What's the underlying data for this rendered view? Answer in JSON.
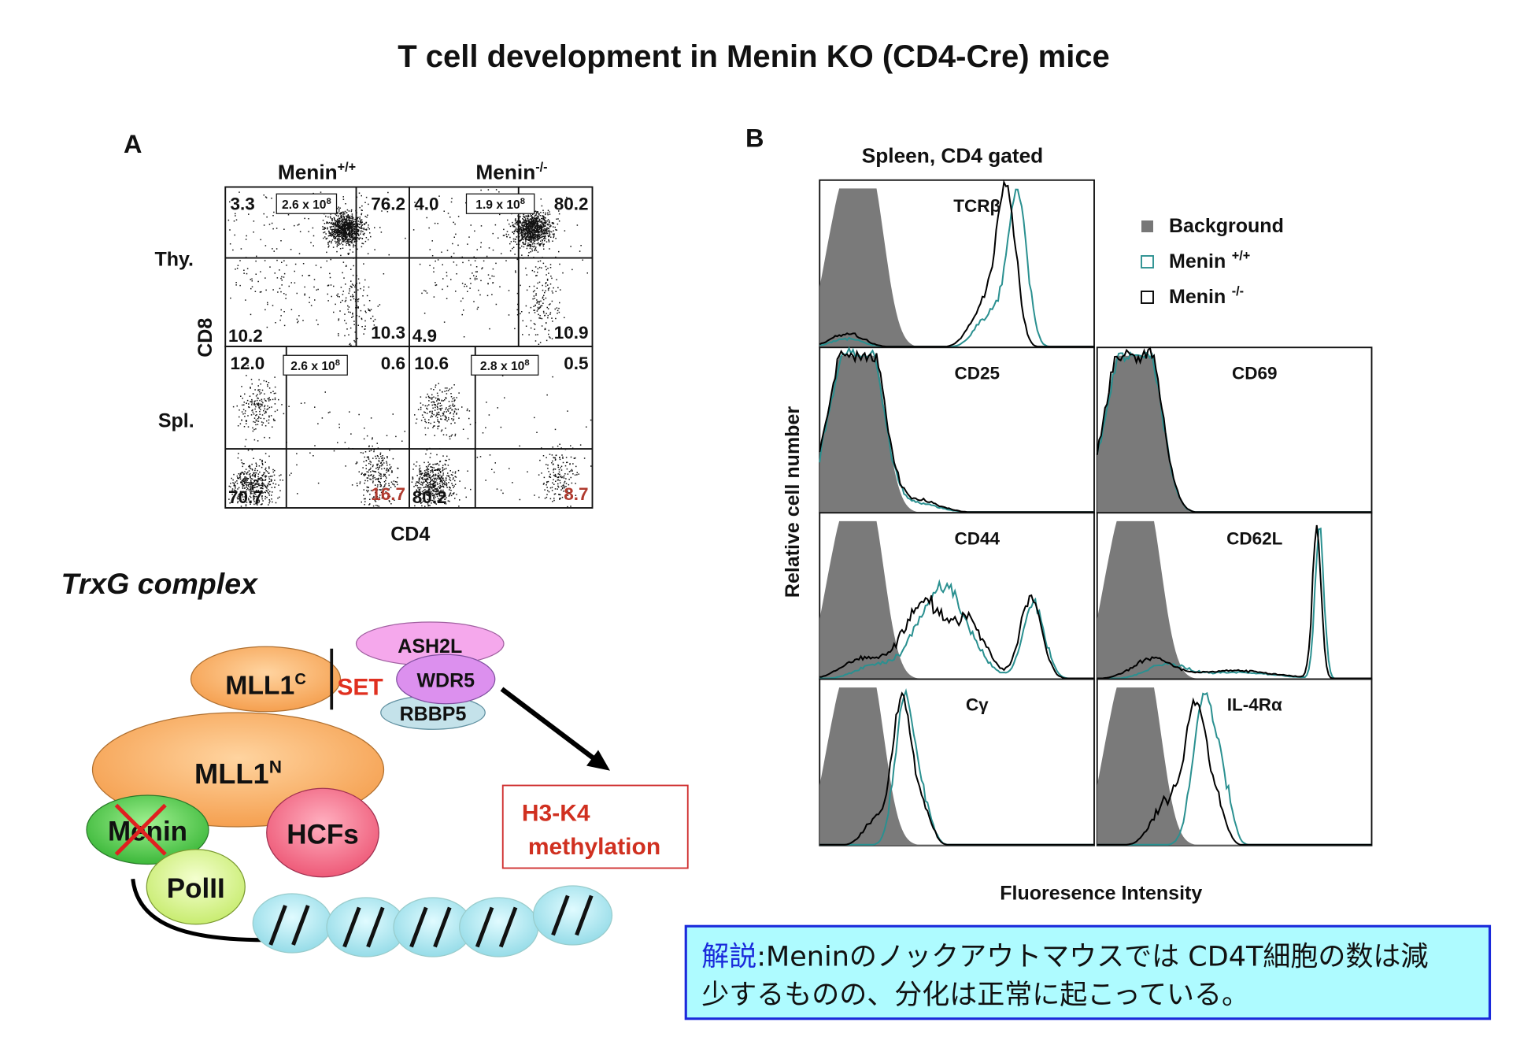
{
  "title": "T cell development in Menin KO (CD4-Cre) mice",
  "panel_a": {
    "label": "A",
    "columns": [
      {
        "name": "Menin",
        "sup": "+/+"
      },
      {
        "name": "Menin",
        "sup": "-/-"
      }
    ],
    "rows": [
      "Thy.",
      "Spl."
    ],
    "y_axis": "CD8",
    "x_axis": "CD4",
    "plots": [
      {
        "count": {
          "base": "2.6 x 10",
          "exp": "8"
        },
        "quadrants": [
          "3.3",
          "76.2",
          "10.2",
          "10.3"
        ]
      },
      {
        "count": {
          "base": "1.9 x 10",
          "exp": "8"
        },
        "quadrants": [
          "4.0",
          "80.2",
          "4.9",
          "10.9"
        ]
      },
      {
        "count": {
          "base": "2.6 x 10",
          "exp": "8"
        },
        "quadrants": [
          "12.0",
          "0.6",
          "70.7",
          "16.7"
        ]
      },
      {
        "count": {
          "base": "2.8 x 10",
          "exp": "8"
        },
        "quadrants": [
          "10.6",
          "0.5",
          "80.2",
          "8.7"
        ]
      }
    ]
  },
  "trxg": {
    "title": "TrxG complex",
    "mll1c": {
      "name": "MLL1",
      "sup": "C"
    },
    "set": "SET",
    "ash2l": "ASH2L",
    "wdr5": "WDR5",
    "rbbp5": "RBBP5",
    "mll1n": {
      "name": "MLL1",
      "sup": "N"
    },
    "menin": "Menin",
    "hcfs": "HCFs",
    "polii": "PolII",
    "output": [
      "H3-K4",
      "methylation"
    ]
  },
  "panel_b": {
    "label": "B",
    "subtitle": "Spleen, CD4 gated",
    "legend": [
      {
        "name": "Background"
      },
      {
        "name": "Menin",
        "sup": "+/+"
      },
      {
        "name": "Menin",
        "sup": "-/-"
      }
    ],
    "y_axis": "Relative cell number",
    "x_axis": "Fluoresence Intensity",
    "panels": [
      "TCRβ",
      "CD25",
      "CD69",
      "CD44",
      "CD62L",
      "Cγ",
      "IL-4Rα"
    ]
  },
  "note": {
    "label": "解説",
    "lines": [
      ":Meninのノックアウトマウスでは CD4T細胞の数は減",
      "少するものの、分化は正常に起こっている。"
    ]
  }
}
